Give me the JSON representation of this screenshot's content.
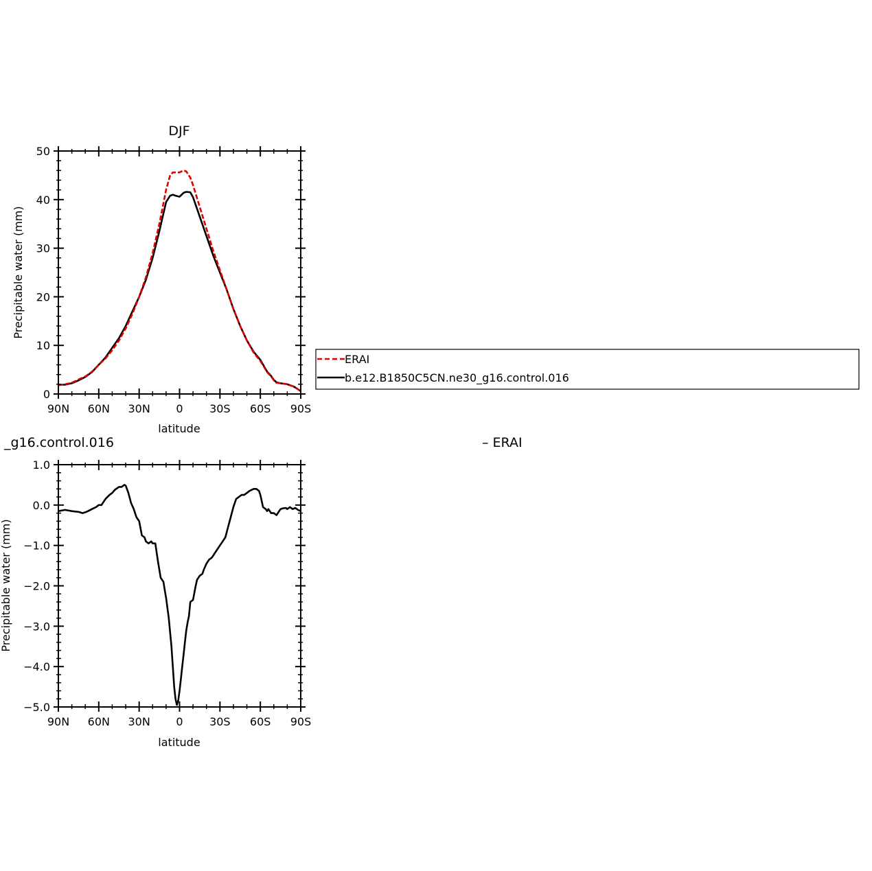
{
  "chart_data": [
    {
      "type": "line",
      "title": "DJF",
      "xlabel": "latitude",
      "ylabel": "Precipitable water (mm)",
      "xlim": [
        90,
        -90
      ],
      "ylim": [
        0,
        50
      ],
      "x_ticks": [
        {
          "value": 90,
          "label": "90N"
        },
        {
          "value": 60,
          "label": "60N"
        },
        {
          "value": 30,
          "label": "30N"
        },
        {
          "value": 0,
          "label": "0"
        },
        {
          "value": -30,
          "label": "30S"
        },
        {
          "value": -60,
          "label": "60S"
        },
        {
          "value": -90,
          "label": "90S"
        }
      ],
      "y_ticks": [
        {
          "value": 0,
          "label": "0"
        },
        {
          "value": 10,
          "label": "10"
        },
        {
          "value": 20,
          "label": "20"
        },
        {
          "value": 30,
          "label": "30"
        },
        {
          "value": 40,
          "label": "40"
        },
        {
          "value": 50,
          "label": "50"
        }
      ],
      "grid": false,
      "legend_position": "right",
      "series": [
        {
          "name": "ERAI",
          "color": "#e00000",
          "style": "dashed",
          "x": [
            90,
            85,
            80,
            75,
            70,
            65,
            60,
            55,
            50,
            45,
            40,
            35,
            30,
            25,
            20,
            15,
            10,
            7,
            5,
            3,
            0,
            -3,
            -5,
            -8,
            -10,
            -15,
            -20,
            -25,
            -30,
            -35,
            -40,
            -45,
            -50,
            -55,
            -60,
            -65,
            -68,
            -70,
            -72,
            -75,
            -80,
            -85,
            -90
          ],
          "values": [
            1.8,
            2.0,
            2.3,
            3.0,
            3.6,
            4.6,
            6.0,
            7.3,
            9.0,
            11.0,
            13.5,
            16.5,
            20.0,
            24.0,
            29.0,
            35.0,
            42.0,
            45.0,
            45.6,
            45.6,
            45.6,
            46.0,
            45.8,
            44.5,
            43.0,
            38.5,
            34.0,
            29.5,
            25.5,
            21.5,
            17.5,
            14.0,
            11.0,
            8.5,
            6.8,
            4.5,
            3.6,
            2.8,
            2.3,
            2.2,
            2.0,
            1.5,
            0.6
          ]
        },
        {
          "name": "b.e12.B1850C5CN.ne30_g16.control.016",
          "color": "#000000",
          "style": "solid",
          "x": [
            90,
            85,
            80,
            75,
            70,
            65,
            60,
            55,
            50,
            45,
            40,
            35,
            30,
            25,
            20,
            15,
            10,
            7,
            5,
            3,
            0,
            -3,
            -5,
            -8,
            -10,
            -15,
            -20,
            -25,
            -30,
            -35,
            -40,
            -45,
            -50,
            -55,
            -60,
            -65,
            -68,
            -70,
            -72,
            -75,
            -80,
            -85,
            -90
          ],
          "values": [
            1.9,
            1.9,
            2.2,
            2.8,
            3.5,
            4.5,
            6.0,
            7.5,
            9.5,
            11.5,
            14.0,
            17.0,
            20.0,
            23.5,
            28.0,
            33.5,
            39.5,
            40.8,
            41.0,
            40.8,
            40.6,
            41.4,
            41.6,
            41.5,
            40.5,
            36.5,
            32.5,
            28.5,
            25.0,
            21.5,
            17.5,
            14.0,
            11.0,
            8.7,
            7.0,
            4.6,
            3.7,
            2.9,
            2.4,
            2.2,
            2.0,
            1.5,
            0.6
          ]
        }
      ]
    },
    {
      "type": "line",
      "title_fragment_left": "_g16.control.016",
      "title_fragment_right": "–  ERAI",
      "xlabel": "latitude",
      "ylabel": "Precipitable water (mm)",
      "xlim": [
        90,
        -90
      ],
      "ylim": [
        -5.0,
        1.0
      ],
      "x_ticks": [
        {
          "value": 90,
          "label": "90N"
        },
        {
          "value": 60,
          "label": "60N"
        },
        {
          "value": 30,
          "label": "30N"
        },
        {
          "value": 0,
          "label": "0"
        },
        {
          "value": -30,
          "label": "30S"
        },
        {
          "value": -60,
          "label": "60S"
        },
        {
          "value": -90,
          "label": "90S"
        }
      ],
      "y_ticks": [
        {
          "value": 1.0,
          "label": "1.0"
        },
        {
          "value": 0.0,
          "label": "0.0"
        },
        {
          "value": -1.0,
          "label": "−1.0"
        },
        {
          "value": -2.0,
          "label": "−2.0"
        },
        {
          "value": -3.0,
          "label": "−3.0"
        },
        {
          "value": -4.0,
          "label": "−4.0"
        },
        {
          "value": -5.0,
          "label": "−5.0"
        }
      ],
      "grid": false,
      "series": [
        {
          "color": "#000000",
          "style": "solid",
          "x": [
            90,
            85,
            80,
            75,
            72,
            70,
            68,
            65,
            62,
            60,
            58,
            55,
            52,
            50,
            48,
            45,
            43,
            41,
            40,
            38,
            36,
            34,
            32,
            30,
            28,
            26,
            25,
            23,
            21,
            20,
            18,
            16,
            14,
            12,
            11,
            10,
            8,
            6,
            5,
            4,
            3,
            2,
            1,
            0,
            -1,
            -2,
            -3,
            -4,
            -5,
            -6,
            -7,
            -8,
            -10,
            -12,
            -13,
            -15,
            -17,
            -18,
            -20,
            -22,
            -24,
            -26,
            -28,
            -30,
            -32,
            -34,
            -36,
            -38,
            -40,
            -42,
            -44,
            -46,
            -48,
            -50,
            -52,
            -55,
            -57,
            -59,
            -60,
            -62,
            -64,
            -65,
            -66,
            -68,
            -70,
            -72,
            -74,
            -75,
            -77,
            -79,
            -80,
            -82,
            -84,
            -86,
            -88,
            -90
          ],
          "values": [
            -0.15,
            -0.12,
            -0.15,
            -0.17,
            -0.2,
            -0.18,
            -0.15,
            -0.1,
            -0.05,
            0.0,
            0.0,
            0.15,
            0.25,
            0.3,
            0.38,
            0.45,
            0.45,
            0.5,
            0.48,
            0.3,
            0.05,
            -0.1,
            -0.3,
            -0.4,
            -0.75,
            -0.8,
            -0.9,
            -0.95,
            -0.9,
            -0.95,
            -0.95,
            -1.4,
            -1.8,
            -1.9,
            -2.1,
            -2.3,
            -2.8,
            -3.5,
            -4.0,
            -4.5,
            -4.8,
            -4.95,
            -4.85,
            -4.6,
            -4.3,
            -4.0,
            -3.7,
            -3.4,
            -3.1,
            -2.9,
            -2.75,
            -2.4,
            -2.35,
            -2.0,
            -1.85,
            -1.75,
            -1.7,
            -1.6,
            -1.45,
            -1.35,
            -1.3,
            -1.2,
            -1.1,
            -1.0,
            -0.9,
            -0.8,
            -0.55,
            -0.3,
            -0.05,
            0.15,
            0.2,
            0.25,
            0.25,
            0.3,
            0.35,
            0.4,
            0.4,
            0.35,
            0.25,
            -0.05,
            -0.1,
            -0.15,
            -0.1,
            -0.2,
            -0.2,
            -0.25,
            -0.15,
            -0.1,
            -0.08,
            -0.07,
            -0.1,
            -0.05,
            -0.1,
            -0.07,
            -0.12,
            -0.15
          ]
        }
      ]
    }
  ]
}
